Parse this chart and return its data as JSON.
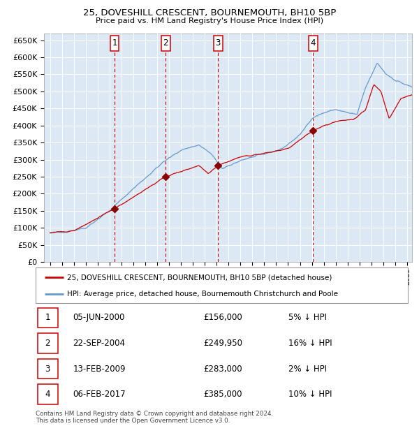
{
  "title1": "25, DOVESHILL CRESCENT, BOURNEMOUTH, BH10 5BP",
  "title2": "Price paid vs. HM Land Registry's House Price Index (HPI)",
  "sale_label": "25, DOVESHILL CRESCENT, BOURNEMOUTH, BH10 5BP (detached house)",
  "hpi_label": "HPI: Average price, detached house, Bournemouth Christchurch and Poole",
  "footer1": "Contains HM Land Registry data © Crown copyright and database right 2024.",
  "footer2": "This data is licensed under the Open Government Licence v3.0.",
  "sales": [
    {
      "num": 1,
      "date": "05-JUN-2000",
      "price": 156000,
      "pct": "5%",
      "dir": "↓",
      "x_year": 2000.43
    },
    {
      "num": 2,
      "date": "22-SEP-2004",
      "price": 249950,
      "pct": "16%",
      "dir": "↓",
      "x_year": 2004.72
    },
    {
      "num": 3,
      "date": "13-FEB-2009",
      "price": 283000,
      "pct": "2%",
      "dir": "↓",
      "x_year": 2009.12
    },
    {
      "num": 4,
      "date": "06-FEB-2017",
      "price": 385000,
      "pct": "10%",
      "dir": "↓",
      "x_year": 2017.1
    }
  ],
  "ylim": [
    0,
    670000
  ],
  "xlim_start": 1994.5,
  "xlim_end": 2025.4,
  "bg_color": "#dce9f5",
  "red_line_color": "#cc0000",
  "blue_line_color": "#6699cc",
  "sale_dot_color": "#880000",
  "vline_color": "#cc0000",
  "grid_color": "#ffffff",
  "box_edge_color": "#cc0000",
  "ytick_labels": [
    "£0",
    "£50K",
    "£100K",
    "£150K",
    "£200K",
    "£250K",
    "£300K",
    "£350K",
    "£400K",
    "£450K",
    "£500K",
    "£550K",
    "£600K",
    "£650K"
  ],
  "ytick_values": [
    0,
    50000,
    100000,
    150000,
    200000,
    250000,
    300000,
    350000,
    400000,
    450000,
    500000,
    550000,
    600000,
    650000
  ],
  "hpi_anchors_t": [
    1995.0,
    1996.5,
    1998.0,
    2000.0,
    2002.0,
    2004.5,
    2006.0,
    2007.5,
    2008.5,
    2009.5,
    2011.0,
    2013.0,
    2014.5,
    2016.0,
    2017.0,
    2018.0,
    2019.0,
    2020.0,
    2020.8,
    2021.5,
    2022.5,
    2023.2,
    2024.0,
    2025.4
  ],
  "hpi_anchors_v": [
    85000,
    90000,
    100000,
    150000,
    215000,
    292000,
    328000,
    343000,
    318000,
    272000,
    298000,
    316000,
    332000,
    372000,
    422000,
    437000,
    447000,
    437000,
    432000,
    510000,
    583000,
    552000,
    533000,
    512000
  ],
  "red_anchors_t": [
    1995.0,
    1997.0,
    1999.5,
    2000.43,
    2004.72,
    2006.0,
    2007.5,
    2008.3,
    2009.12,
    2011.0,
    2013.0,
    2015.0,
    2017.1,
    2018.0,
    2019.5,
    2020.5,
    2021.5,
    2022.2,
    2022.8,
    2023.5,
    2024.5,
    2025.4
  ],
  "red_anchors_v": [
    85000,
    91000,
    138000,
    156000,
    249950,
    265000,
    283000,
    260000,
    283000,
    308000,
    318000,
    332000,
    385000,
    400000,
    415000,
    418000,
    445000,
    520000,
    500000,
    420000,
    480000,
    490000
  ]
}
